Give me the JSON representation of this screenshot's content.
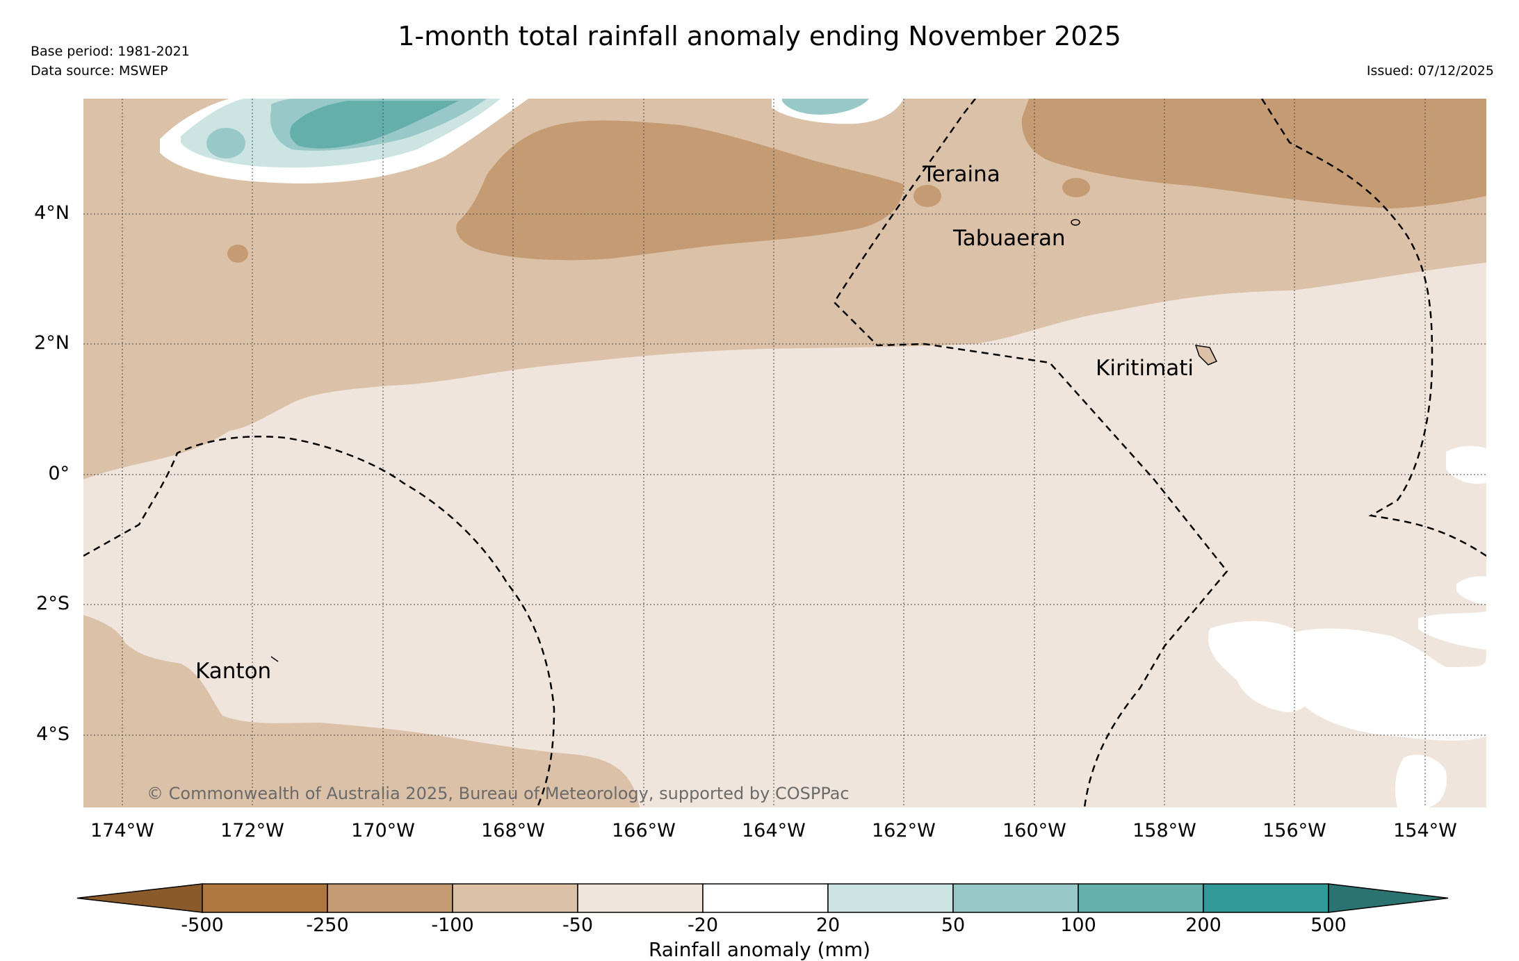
{
  "title": "1-month total rainfall anomaly ending November 2025",
  "base_period": "Base period: 1981-2021",
  "data_source": "Data source: MSWEP",
  "issued": "Issued: 07/12/2025",
  "credit": "© Commonwealth of Australia 2025, Bureau of Meteorology, supported by COSPPac",
  "lat_labels": [
    "4°N",
    "2°N",
    "0°",
    "2°S",
    "4°S"
  ],
  "lon_labels": [
    "174°W",
    "172°W",
    "170°W",
    "168°W",
    "166°W",
    "164°W",
    "162°W",
    "160°W",
    "158°W",
    "156°W",
    "154°W"
  ],
  "places": {
    "teraina": "Teraina",
    "tabuaeran": "Tabuaeran",
    "kiritimati": "Kiritimati",
    "kanton": "Kanton"
  },
  "colorbar": {
    "title": "Rainfall anomaly (mm)",
    "ticks": [
      "-500",
      "-250",
      "-100",
      "-50",
      "-20",
      "20",
      "50",
      "100",
      "200",
      "500"
    ],
    "colors": {
      "lt_-500": "#8a5a2b",
      "-500_-250": "#ad773d",
      "-250_-100": "#c49b72",
      "-100_-50": "#dbc1a8",
      "-50_-20": "#f0e5dc",
      "-20_20": "#ffffff",
      "20_50": "#cce5e3",
      "50_100": "#98c9c8",
      "100_200": "#64aeac",
      "200_500": "#319a96",
      "gt_500": "#2a7370"
    }
  }
}
